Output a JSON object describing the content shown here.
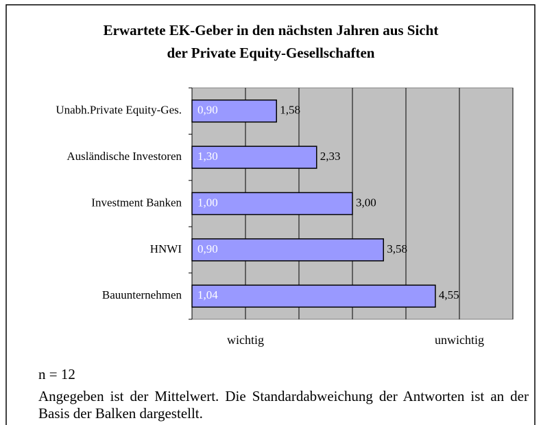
{
  "chart_data": {
    "type": "bar",
    "orientation": "horizontal",
    "title": [
      "Erwartete EK-Geber in den nächsten Jahren aus Sicht",
      "der Private Equity-Gesellschaften"
    ],
    "categories": [
      "Unabh.Private Equity-Ges.",
      "Ausländische Investoren",
      "Investment Banken",
      "HNWI",
      "Bauunternehmen"
    ],
    "series": [
      {
        "name": "Mittelwert",
        "color": "#9999ff",
        "values": [
          1.58,
          2.33,
          3.0,
          3.58,
          4.55
        ],
        "value_labels": [
          "1,58",
          "2,33",
          "3,00",
          "3,58",
          "4,55"
        ],
        "std": [
          0.9,
          1.3,
          1.0,
          0.9,
          1.04
        ],
        "std_labels": [
          "0,90",
          "1,30",
          "1,00",
          "0,90",
          "1,04"
        ]
      }
    ],
    "xlim": [
      0,
      6
    ],
    "xticks": [
      0,
      1,
      2,
      3,
      4,
      5,
      6
    ],
    "x_labels": [
      {
        "value": 1,
        "label": "wichtig"
      },
      {
        "value": 5,
        "label": "unwichtig"
      }
    ],
    "grid": true,
    "plot_background": "#c0c0c0",
    "footnote": "n = 12",
    "note": "Angegeben ist der Mittelwert. Die Standardabweichung der Antworten ist an der Basis der Balken dargestellt."
  }
}
